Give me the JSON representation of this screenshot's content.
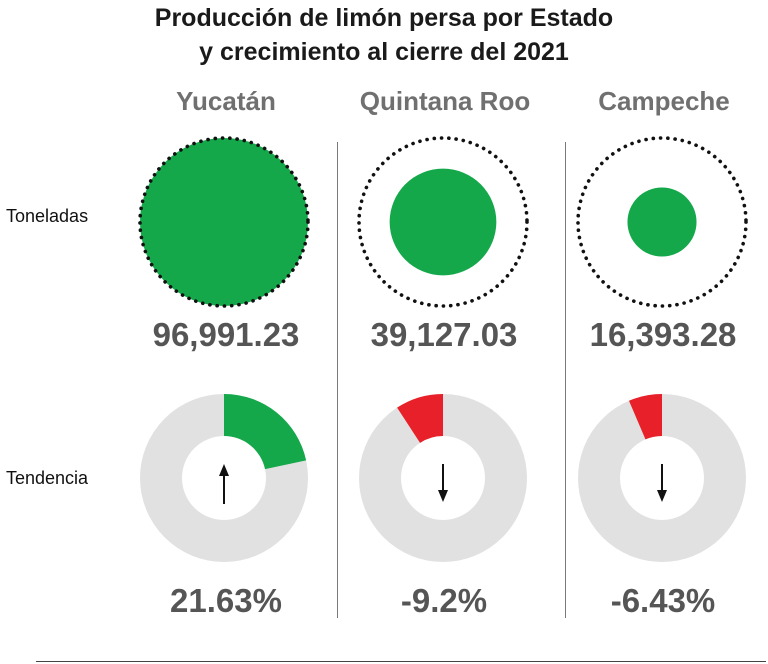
{
  "title_line1": "Producción de limón persa por Estado",
  "title_line2": "y crecimiento al cierre del 2021",
  "row_labels": {
    "tons": "Toneladas",
    "trend": "Tendencia"
  },
  "colors": {
    "production": "#14a84a",
    "positive": "#14a84a",
    "negative": "#e8202a",
    "track": "#e1e1e1",
    "ring": "#111111"
  },
  "states": [
    {
      "name": "Yucatán",
      "tons_label": "96,991.23",
      "growth_label": "21.63%",
      "arrow": "up-arrow-icon"
    },
    {
      "name": "Quintana Roo",
      "tons_label": "39,127.03",
      "growth_label": "-9.2%",
      "arrow": "down-arrow-icon"
    },
    {
      "name": "Campeche",
      "tons_label": "16,393.28",
      "growth_label": "-6.43%",
      "arrow": "down-arrow-icon"
    }
  ],
  "chart_data": [
    {
      "type": "bubble",
      "title": "Producción de limón persa por Estado y crecimiento al cierre del 2021",
      "categories": [
        "Yucatán",
        "Quintana Roo",
        "Campeche"
      ],
      "series": [
        {
          "name": "Toneladas",
          "values": [
            96991.23,
            39127.03,
            16393.28
          ]
        }
      ],
      "max_value": 96991.23
    },
    {
      "type": "pie",
      "categories": [
        "Yucatán",
        "Quintana Roo",
        "Campeche"
      ],
      "series": [
        {
          "name": "Tendencia",
          "values": [
            21.63,
            -9.2,
            -6.43
          ]
        }
      ],
      "unit": "%"
    }
  ]
}
